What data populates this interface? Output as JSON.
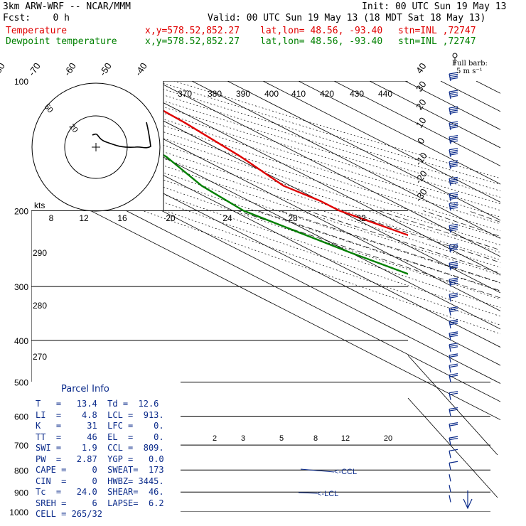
{
  "header": {
    "model": "3km ARW-WRF -- NCAR/MMM",
    "init": "Init: 00 UTC Sun 19 May 13",
    "fcst": "Fcst:    0 h",
    "valid": "Valid: 00 UTC Sun 19 May 13 (18 MDT Sat 18 May 13)"
  },
  "legend": {
    "temperature": "Temperature",
    "dewpoint": "Dewpoint temperature",
    "xy": "x,y=578.52,852.27",
    "latlon": "lat,lon= 48.56, -93.40",
    "stn": "stn=INL ,72747"
  },
  "colors": {
    "temperature": "#e00000",
    "dewpoint": "#008000",
    "panel": "#0a2a8a",
    "barbs": "#0a2a8a"
  },
  "barb_legend": {
    "title": "Full barb:",
    "value": "5 m s⁻¹"
  },
  "hodograph": {
    "rings": [
      "50",
      "20"
    ],
    "unit": "kts"
  },
  "wetbulb_labels": [
    "8",
    "12",
    "16",
    "20",
    "24",
    "28",
    "32"
  ],
  "theta_labels": [
    "370",
    "380",
    "390",
    "400",
    "410",
    "420",
    "430",
    "440"
  ],
  "theta_left": [
    "290",
    "280",
    "270"
  ],
  "mixing_ratio_labels": [
    "2",
    "3",
    "5",
    "8",
    "12",
    "20"
  ],
  "ccl_label": "<-CCL",
  "lcl_label": "<-LCL",
  "parcel": {
    "title": "Parcel Info",
    "rows": [
      "T   =   13.4  Td =  12.6",
      "LI  =    4.8  LCL =  913.",
      "K   =     31  LFC =    0.",
      "TT  =     46  EL  =    0.",
      "SWI =    1.9  CCL =  809.",
      "PW  =   2.87  YGP =   0.0",
      "CAPE =     0  SWEAT=  173",
      "CIN  =     0  HWBZ= 3445.",
      "Tc  =   24.0  SHEAR=  46.",
      "SREH =     6  LAPSE=  6.2",
      "CELL = 265/32"
    ]
  },
  "chart_data": {
    "type": "line",
    "title": "",
    "diagram": "skew-T log-p",
    "pressure_levels_hpa": [
      100,
      200,
      300,
      400,
      500,
      600,
      700,
      800,
      900,
      1000
    ],
    "isotherm_labels_degC": [
      -80,
      -70,
      -60,
      -50,
      -40,
      -30,
      -20,
      -10,
      0,
      10,
      20,
      30,
      40
    ],
    "series": [
      {
        "name": "Temperature",
        "points_p_T": [
          [
            100,
            -53
          ],
          [
            125,
            -55
          ],
          [
            150,
            -58
          ],
          [
            175,
            -62
          ],
          [
            190,
            -60
          ],
          [
            200,
            -60
          ],
          [
            250,
            -50
          ],
          [
            300,
            -40
          ],
          [
            400,
            -23
          ],
          [
            500,
            -13
          ],
          [
            600,
            -4
          ],
          [
            700,
            2
          ],
          [
            800,
            9
          ],
          [
            850,
            11
          ],
          [
            900,
            13
          ],
          [
            950,
            13.4
          ]
        ]
      },
      {
        "name": "Dewpoint temperature",
        "points_p_T": [
          [
            100,
            -78
          ],
          [
            120,
            -76
          ],
          [
            150,
            -79
          ],
          [
            175,
            -85
          ],
          [
            200,
            -87
          ],
          [
            250,
            -80
          ],
          [
            300,
            -73
          ],
          [
            350,
            -72
          ],
          [
            400,
            -68
          ],
          [
            450,
            -52
          ],
          [
            500,
            -38
          ],
          [
            600,
            -22
          ],
          [
            700,
            -8
          ],
          [
            800,
            6
          ],
          [
            850,
            10
          ],
          [
            900,
            12
          ],
          [
            950,
            12.6
          ]
        ]
      }
    ],
    "wind_profile_kts": [
      [
        100,
        65
      ],
      [
        110,
        60
      ],
      [
        120,
        62
      ],
      [
        130,
        60
      ],
      [
        140,
        55
      ],
      [
        150,
        55
      ],
      [
        160,
        50
      ],
      [
        175,
        50
      ],
      [
        190,
        48
      ],
      [
        200,
        45
      ],
      [
        225,
        45
      ],
      [
        250,
        42
      ],
      [
        275,
        40
      ],
      [
        300,
        40
      ],
      [
        325,
        38
      ],
      [
        350,
        35
      ],
      [
        375,
        35
      ],
      [
        400,
        30
      ],
      [
        425,
        30
      ],
      [
        450,
        28
      ],
      [
        475,
        28
      ],
      [
        500,
        25
      ],
      [
        550,
        25
      ],
      [
        600,
        22
      ],
      [
        650,
        20
      ],
      [
        700,
        20
      ],
      [
        750,
        15
      ],
      [
        800,
        10
      ],
      [
        850,
        8
      ],
      [
        900,
        5
      ],
      [
        950,
        5
      ]
    ]
  }
}
